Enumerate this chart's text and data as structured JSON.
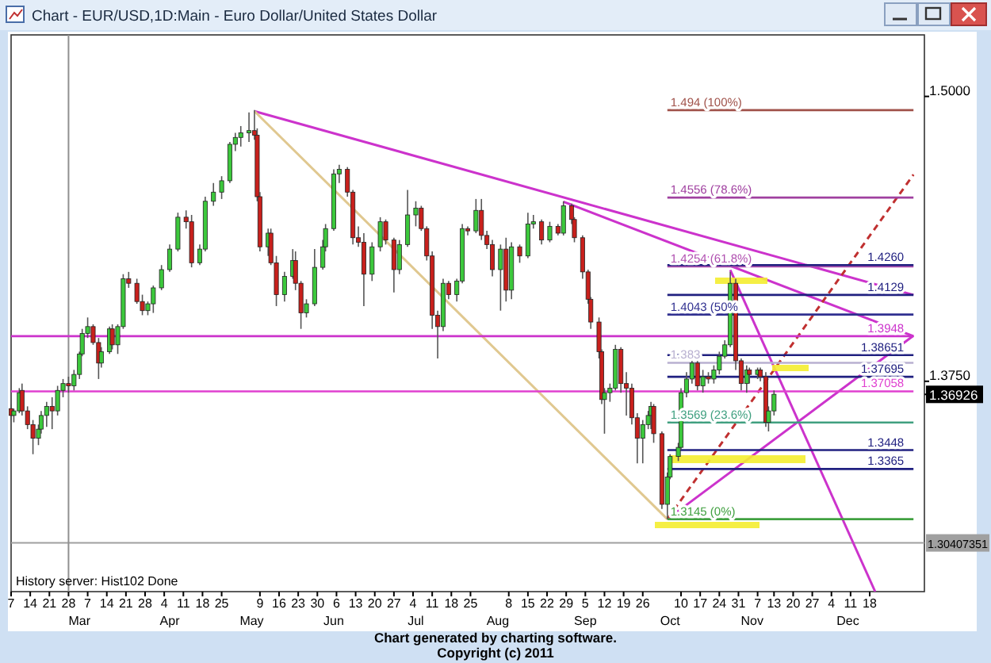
{
  "chart_data": {
    "type": "candlestick",
    "title": "Chart - EUR/USD,1D:Main - Euro Dollar/United States Dollar",
    "xlim": [
      "2011-02-07",
      "2012-01-07"
    ],
    "ylim": [
      1.2827,
      1.527
    ],
    "xticks": [
      {
        "value": "2011-02-07",
        "label": "7"
      },
      {
        "value": "2011-02-14",
        "label": "14"
      },
      {
        "value": "2011-02-21",
        "label": "21"
      },
      {
        "value": "2011-02-28",
        "label": "28"
      },
      {
        "value": "2011-03-07",
        "label": "7"
      },
      {
        "value": "2011-03-14",
        "label": "14"
      },
      {
        "value": "2011-03-21",
        "label": "21"
      },
      {
        "value": "2011-03-28",
        "label": "28"
      },
      {
        "value": "2011-04-04",
        "label": "4"
      },
      {
        "value": "2011-04-11",
        "label": "11"
      },
      {
        "value": "2011-04-18",
        "label": "18"
      },
      {
        "value": "2011-04-25",
        "label": "25"
      },
      {
        "value": "2011-05-09",
        "label": "9"
      },
      {
        "value": "2011-05-16",
        "label": "16"
      },
      {
        "value": "2011-05-23",
        "label": "23"
      },
      {
        "value": "2011-05-30",
        "label": "30"
      },
      {
        "value": "2011-06-06",
        "label": "6"
      },
      {
        "value": "2011-06-13",
        "label": "13"
      },
      {
        "value": "2011-06-20",
        "label": "20"
      },
      {
        "value": "2011-06-27",
        "label": "27"
      },
      {
        "value": "2011-07-04",
        "label": "4"
      },
      {
        "value": "2011-07-11",
        "label": "11"
      },
      {
        "value": "2011-07-18",
        "label": "18"
      },
      {
        "value": "2011-07-25",
        "label": "25"
      },
      {
        "value": "2011-08-08",
        "label": "8"
      },
      {
        "value": "2011-08-15",
        "label": "15"
      },
      {
        "value": "2011-08-22",
        "label": "22"
      },
      {
        "value": "2011-08-29",
        "label": "29"
      },
      {
        "value": "2011-09-05",
        "label": "5"
      },
      {
        "value": "2011-09-12",
        "label": "12"
      },
      {
        "value": "2011-09-19",
        "label": "19"
      },
      {
        "value": "2011-09-26",
        "label": "26"
      },
      {
        "value": "2011-10-10",
        "label": "10"
      },
      {
        "value": "2011-10-17",
        "label": "17"
      },
      {
        "value": "2011-10-24",
        "label": "24"
      },
      {
        "value": "2011-10-31",
        "label": "31"
      },
      {
        "value": "2011-11-07",
        "label": "7"
      },
      {
        "value": "2011-11-13",
        "label": "13"
      },
      {
        "value": "2011-11-20",
        "label": "20"
      },
      {
        "value": "2011-11-27",
        "label": "27"
      },
      {
        "value": "2011-12-04",
        "label": "4"
      },
      {
        "value": "2011-12-11",
        "label": "11"
      },
      {
        "value": "2011-12-18",
        "label": "18"
      }
    ],
    "x2lim": [
      "2011-02-07",
      "2012-01-07"
    ],
    "x2ticks": [
      {
        "value": "2011-03-04",
        "label": "Mar"
      },
      {
        "value": "2011-04-06",
        "label": "Apr"
      },
      {
        "value": "2011-05-06",
        "label": "May"
      },
      {
        "value": "2011-06-05",
        "label": "Jun"
      },
      {
        "value": "2011-07-05",
        "label": "Jul"
      },
      {
        "value": "2011-08-04",
        "label": "Aug"
      },
      {
        "value": "2011-09-05",
        "label": "Sep"
      },
      {
        "value": "2011-10-06",
        "label": "Oct"
      },
      {
        "value": "2011-11-05",
        "label": "Nov"
      },
      {
        "value": "2011-12-10",
        "label": "Dec"
      }
    ],
    "yticks": [
      {
        "value": 1.5,
        "label": "1.5000"
      },
      {
        "value": 1.375,
        "label": "1.3750"
      },
      {
        "value": 1.36926,
        "label": "1.36926"
      }
    ],
    "x": [
      "2011-02-07",
      "2011-02-08",
      "2011-02-10",
      "2011-02-11",
      "2011-02-13",
      "2011-02-15",
      "2011-02-17",
      "2011-02-18",
      "2011-02-20",
      "2011-02-22",
      "2011-02-24",
      "2011-02-26",
      "2011-02-28",
      "2011-03-02",
      "2011-03-04",
      "2011-03-05",
      "2011-03-07",
      "2011-03-09",
      "2011-03-11",
      "2011-03-12",
      "2011-03-15",
      "2011-03-16",
      "2011-03-18",
      "2011-03-20",
      "2011-03-22",
      "2011-03-25",
      "2011-03-27",
      "2011-03-29",
      "2011-03-31",
      "2011-04-03",
      "2011-04-06",
      "2011-04-09",
      "2011-04-12",
      "2011-04-14",
      "2011-04-17",
      "2011-04-19",
      "2011-04-22",
      "2011-04-25",
      "2011-04-28",
      "2011-04-30",
      "2011-05-02",
      "2011-05-05",
      "2011-05-07",
      "2011-05-08",
      "2011-05-09",
      "2011-05-12",
      "2011-05-13",
      "2011-05-15",
      "2011-05-18",
      "2011-05-21",
      "2011-05-22",
      "2011-05-24",
      "2011-05-26",
      "2011-05-29",
      "2011-06-01",
      "2011-06-02",
      "2011-06-05",
      "2011-06-07",
      "2011-06-10",
      "2011-06-12",
      "2011-06-14",
      "2011-06-16",
      "2011-06-19",
      "2011-06-22",
      "2011-06-24",
      "2011-06-27",
      "2011-06-29",
      "2011-07-02",
      "2011-07-05",
      "2011-07-07",
      "2011-07-09",
      "2011-07-11",
      "2011-07-13",
      "2011-07-15",
      "2011-07-17",
      "2011-07-20",
      "2011-07-22",
      "2011-07-24",
      "2011-07-27",
      "2011-07-29",
      "2011-07-31",
      "2011-08-02",
      "2011-08-05",
      "2011-08-07",
      "2011-08-09",
      "2011-08-12",
      "2011-08-15",
      "2011-08-17",
      "2011-08-20",
      "2011-08-23",
      "2011-08-26",
      "2011-08-28",
      "2011-08-31",
      "2011-09-01",
      "2011-09-04",
      "2011-09-06",
      "2011-09-07",
      "2011-09-10",
      "2011-09-11",
      "2011-09-12",
      "2011-09-14",
      "2011-09-16",
      "2011-09-18",
      "2011-09-20",
      "2011-09-22",
      "2011-09-24",
      "2011-09-26",
      "2011-09-28",
      "2011-09-29",
      "2011-09-30",
      "2011-10-03",
      "2011-10-05",
      "2011-10-06",
      "2011-10-09",
      "2011-10-10",
      "2011-10-12",
      "2011-10-14",
      "2011-10-16",
      "2011-10-18",
      "2011-10-20",
      "2011-10-22",
      "2011-10-24",
      "2011-10-26",
      "2011-10-28",
      "2011-10-30",
      "2011-11-01",
      "2011-11-03",
      "2011-11-04",
      "2011-11-07",
      "2011-11-08",
      "2011-11-10",
      "2011-11-11",
      "2011-11-13"
    ],
    "ohlc": [
      [
        1.363,
        1.365,
        1.358,
        1.36
      ],
      [
        1.36,
        1.363,
        1.357,
        1.362
      ],
      [
        1.362,
        1.372,
        1.361,
        1.37
      ],
      [
        1.371,
        1.374,
        1.36,
        1.362
      ],
      [
        1.362,
        1.364,
        1.354,
        1.356
      ],
      [
        1.356,
        1.358,
        1.343,
        1.35
      ],
      [
        1.35,
        1.356,
        1.347,
        1.354
      ],
      [
        1.354,
        1.362,
        1.352,
        1.36
      ],
      [
        1.36,
        1.366,
        1.355,
        1.364
      ],
      [
        1.364,
        1.368,
        1.354,
        1.362
      ],
      [
        1.362,
        1.373,
        1.36,
        1.371
      ],
      [
        1.371,
        1.376,
        1.368,
        1.374
      ],
      [
        1.374,
        1.377,
        1.37,
        1.373
      ],
      [
        1.373,
        1.38,
        1.371,
        1.378
      ],
      [
        1.378,
        1.388,
        1.376,
        1.387
      ],
      [
        1.387,
        1.398,
        1.386,
        1.396
      ],
      [
        1.396,
        1.403,
        1.394,
        1.399
      ],
      [
        1.399,
        1.4,
        1.391,
        1.392
      ],
      [
        1.392,
        1.394,
        1.376,
        1.383
      ],
      [
        1.383,
        1.39,
        1.381,
        1.388
      ],
      [
        1.388,
        1.399,
        1.387,
        1.398
      ],
      [
        1.398,
        1.4,
        1.389,
        1.391
      ],
      [
        1.391,
        1.4,
        1.387,
        1.399
      ],
      [
        1.399,
        1.422,
        1.398,
        1.42
      ],
      [
        1.42,
        1.423,
        1.416,
        1.418
      ],
      [
        1.418,
        1.42,
        1.409,
        1.41
      ],
      [
        1.41,
        1.413,
        1.404,
        1.406
      ],
      [
        1.406,
        1.41,
        1.404,
        1.409
      ],
      [
        1.409,
        1.417,
        1.405,
        1.416
      ],
      [
        1.416,
        1.426,
        1.415,
        1.424
      ],
      [
        1.424,
        1.435,
        1.423,
        1.433
      ],
      [
        1.433,
        1.449,
        1.432,
        1.447
      ],
      [
        1.447,
        1.45,
        1.442,
        1.445
      ],
      [
        1.445,
        1.448,
        1.425,
        1.427
      ],
      [
        1.427,
        1.435,
        1.426,
        1.433
      ],
      [
        1.433,
        1.456,
        1.432,
        1.454
      ],
      [
        1.454,
        1.462,
        1.452,
        1.458
      ],
      [
        1.458,
        1.465,
        1.455,
        1.463
      ],
      [
        1.463,
        1.48,
        1.462,
        1.479
      ],
      [
        1.479,
        1.484,
        1.476,
        1.482
      ],
      [
        1.482,
        1.487,
        1.478,
        1.484
      ],
      [
        1.484,
        1.493,
        1.48,
        1.485
      ],
      [
        1.485,
        1.494,
        1.481,
        1.483
      ],
      [
        1.483,
        1.486,
        1.454,
        1.456
      ],
      [
        1.456,
        1.458,
        1.432,
        1.434
      ],
      [
        1.434,
        1.442,
        1.43,
        1.44
      ],
      [
        1.44,
        1.442,
        1.426,
        1.427
      ],
      [
        1.427,
        1.43,
        1.408,
        1.413
      ],
      [
        1.413,
        1.423,
        1.41,
        1.421
      ],
      [
        1.421,
        1.433,
        1.42,
        1.428
      ],
      [
        1.428,
        1.432,
        1.415,
        1.418
      ],
      [
        1.418,
        1.419,
        1.398,
        1.405
      ],
      [
        1.405,
        1.411,
        1.403,
        1.409
      ],
      [
        1.409,
        1.433,
        1.408,
        1.425
      ],
      [
        1.425,
        1.437,
        1.424,
        1.434
      ],
      [
        1.434,
        1.444,
        1.432,
        1.442
      ],
      [
        1.442,
        1.468,
        1.441,
        1.466
      ],
      [
        1.466,
        1.47,
        1.462,
        1.468
      ],
      [
        1.468,
        1.469,
        1.456,
        1.458
      ],
      [
        1.458,
        1.459,
        1.435,
        1.438
      ],
      [
        1.438,
        1.443,
        1.434,
        1.436
      ],
      [
        1.436,
        1.44,
        1.408,
        1.422
      ],
      [
        1.422,
        1.436,
        1.419,
        1.434
      ],
      [
        1.434,
        1.447,
        1.432,
        1.445
      ],
      [
        1.445,
        1.446,
        1.435,
        1.437
      ],
      [
        1.437,
        1.438,
        1.414,
        1.424
      ],
      [
        1.424,
        1.437,
        1.422,
        1.435
      ],
      [
        1.435,
        1.459,
        1.434,
        1.448
      ],
      [
        1.448,
        1.454,
        1.443,
        1.451
      ],
      [
        1.451,
        1.452,
        1.441,
        1.442
      ],
      [
        1.442,
        1.443,
        1.428,
        1.43
      ],
      [
        1.43,
        1.432,
        1.398,
        1.404
      ],
      [
        1.404,
        1.406,
        1.385,
        1.399
      ],
      [
        1.399,
        1.42,
        1.397,
        1.418
      ],
      [
        1.418,
        1.419,
        1.411,
        1.413
      ],
      [
        1.413,
        1.42,
        1.41,
        1.419
      ],
      [
        1.419,
        1.444,
        1.418,
        1.442
      ],
      [
        1.442,
        1.443,
        1.439,
        1.441
      ],
      [
        1.441,
        1.455,
        1.44,
        1.45
      ],
      [
        1.45,
        1.455,
        1.437,
        1.439
      ],
      [
        1.439,
        1.441,
        1.433,
        1.435
      ],
      [
        1.435,
        1.437,
        1.421,
        1.424
      ],
      [
        1.424,
        1.435,
        1.406,
        1.433
      ],
      [
        1.433,
        1.438,
        1.41,
        1.415
      ],
      [
        1.415,
        1.436,
        1.411,
        1.434
      ],
      [
        1.434,
        1.435,
        1.427,
        1.43
      ],
      [
        1.43,
        1.449,
        1.429,
        1.444
      ],
      [
        1.444,
        1.448,
        1.442,
        1.445
      ],
      [
        1.445,
        1.446,
        1.435,
        1.437
      ],
      [
        1.437,
        1.445,
        1.436,
        1.443
      ],
      [
        1.443,
        1.444,
        1.439,
        1.44
      ],
      [
        1.44,
        1.454,
        1.439,
        1.452
      ],
      [
        1.452,
        1.453,
        1.444,
        1.446
      ],
      [
        1.446,
        1.447,
        1.436,
        1.438
      ],
      [
        1.438,
        1.439,
        1.42,
        1.423
      ],
      [
        1.423,
        1.424,
        1.409,
        1.411
      ],
      [
        1.411,
        1.412,
        1.398,
        1.401
      ],
      [
        1.401,
        1.403,
        1.385,
        1.388
      ],
      [
        1.388,
        1.389,
        1.365,
        1.367
      ],
      [
        1.367,
        1.372,
        1.352,
        1.37
      ],
      [
        1.37,
        1.374,
        1.366,
        1.372
      ],
      [
        1.372,
        1.391,
        1.371,
        1.389
      ],
      [
        1.389,
        1.39,
        1.37,
        1.374
      ],
      [
        1.374,
        1.379,
        1.36,
        1.372
      ],
      [
        1.372,
        1.374,
        1.356,
        1.359
      ],
      [
        1.359,
        1.361,
        1.339,
        1.35
      ],
      [
        1.35,
        1.358,
        1.339,
        1.356
      ],
      [
        1.356,
        1.362,
        1.354,
        1.36
      ],
      [
        1.36,
        1.366,
        1.354,
        1.364
      ],
      [
        1.364,
        1.365,
        1.348,
        1.352
      ],
      [
        1.352,
        1.353,
        1.319,
        1.321
      ],
      [
        1.321,
        1.335,
        1.3145,
        1.333
      ],
      [
        1.333,
        1.343,
        1.332,
        1.342
      ],
      [
        1.342,
        1.348,
        1.34,
        1.346
      ],
      [
        1.346,
        1.372,
        1.345,
        1.37
      ],
      [
        1.37,
        1.379,
        1.368,
        1.376
      ],
      [
        1.376,
        1.385,
        1.374,
        1.383
      ],
      [
        1.383,
        1.384,
        1.371,
        1.373
      ],
      [
        1.373,
        1.38,
        1.37,
        1.377
      ],
      [
        1.377,
        1.379,
        1.374,
        1.376
      ],
      [
        1.376,
        1.382,
        1.374,
        1.38
      ],
      [
        1.38,
        1.388,
        1.378,
        1.386
      ],
      [
        1.386,
        1.393,
        1.385,
        1.391
      ],
      [
        1.391,
        1.423,
        1.39,
        1.418
      ],
      [
        1.418,
        1.42,
        1.38,
        1.384
      ],
      [
        1.384,
        1.385,
        1.371,
        1.374
      ],
      [
        1.374,
        1.382,
        1.37,
        1.38
      ],
      [
        1.38,
        1.381,
        1.374,
        1.378
      ],
      [
        1.378,
        1.381,
        1.376,
        1.38
      ],
      [
        1.38,
        1.381,
        1.375,
        1.377
      ],
      [
        1.377,
        1.379,
        1.355,
        1.357
      ],
      [
        1.357,
        1.364,
        1.353,
        1.362
      ],
      [
        1.362,
        1.371,
        1.36,
        1.3693
      ]
    ],
    "series": [
      {
        "type": "line",
        "color": "#cc33cc",
        "x": [
          "2011-05-07",
          "2012-01-03"
        ],
        "values": [
          1.4935,
          1.4129
        ]
      },
      {
        "type": "line",
        "color": "#cc33cc",
        "x": [
          "2011-08-28",
          "2012-01-03"
        ],
        "values": [
          1.4538,
          1.3948
        ]
      },
      {
        "type": "line",
        "color": "#cc33cc",
        "x": [
          "2011-10-28",
          "2011-12-20"
        ],
        "values": [
          1.4239,
          1.2827
        ]
      },
      {
        "type": "line",
        "color": "#cc33cc",
        "x": [
          "2011-10-05",
          "2012-01-03"
        ],
        "values": [
          1.3145,
          1.395
        ]
      },
      {
        "type": "line",
        "color": "#e0c890",
        "x": [
          "2011-05-07",
          "2011-10-05"
        ],
        "values": [
          1.4935,
          1.3145
        ]
      },
      {
        "type": "line",
        "color": "#c03030",
        "line_style": "dashed",
        "x": [
          "2011-10-05",
          "2012-01-03"
        ],
        "values": [
          1.3145,
          1.4657
        ]
      },
      {
        "type": "line",
        "name": "1.3948",
        "color": "#cc33cc",
        "x": [
          "2012-01-03",
          "2011-02-07"
        ],
        "values": [
          1.3948,
          1.3948
        ]
      },
      {
        "type": "line",
        "name": "1.37058",
        "color": "#e040d0",
        "x": [
          "2012-01-03",
          "2011-02-07"
        ],
        "values": [
          1.37058,
          1.37058
        ]
      },
      {
        "type": "line",
        "name": "1.494 (100%)",
        "color": "#a0524a",
        "x": [
          "2011-10-05",
          "2012-01-03"
        ],
        "values": [
          1.494,
          1.494
        ]
      },
      {
        "type": "line",
        "name": "1.4556 (78.6%)",
        "color": "#a040a0",
        "x": [
          "2011-10-05",
          "2012-01-03"
        ],
        "values": [
          1.4556,
          1.4556
        ]
      },
      {
        "type": "line",
        "name": "1.4254 (61.8%)",
        "color": "#b050b0",
        "x": [
          "2011-10-05",
          "2012-01-03"
        ],
        "values": [
          1.4254,
          1.4254
        ]
      },
      {
        "type": "line",
        "name": "1.4043 (50%",
        "color": "#303090",
        "x": [
          "2011-10-05",
          "2012-01-03"
        ],
        "values": [
          1.4043,
          1.4043
        ]
      },
      {
        "type": "line",
        "name": "1.383",
        "color": "#b8b0d0",
        "x": [
          "2011-10-05",
          "2012-01-03"
        ],
        "values": [
          1.3831,
          1.3831
        ]
      },
      {
        "type": "line",
        "name": "1.3569 (23.6%)",
        "color": "#40a080",
        "x": [
          "2011-10-05",
          "2012-01-03"
        ],
        "values": [
          1.3569,
          1.3569
        ]
      },
      {
        "type": "line",
        "name": "1.3145 (0%)",
        "color": "#40a040",
        "x": [
          "2011-10-05",
          "2012-01-03"
        ],
        "values": [
          1.3145,
          1.3145
        ]
      },
      {
        "type": "line",
        "name": "1.4260",
        "color": "#202080",
        "x": [
          "2012-01-03",
          "2011-10-05"
        ],
        "values": [
          1.426,
          1.426
        ]
      },
      {
        "type": "line",
        "name": "1.4129",
        "color": "#202080",
        "x": [
          "2012-01-03",
          "2011-10-05"
        ],
        "values": [
          1.4129,
          1.4129
        ]
      },
      {
        "type": "line",
        "name": "1.38651",
        "color": "#202080",
        "x": [
          "2012-01-03",
          "2011-10-05"
        ],
        "values": [
          1.38651,
          1.38651
        ]
      },
      {
        "type": "line",
        "name": "1.37695",
        "color": "#202080",
        "x": [
          "2012-01-03",
          "2011-10-05"
        ],
        "values": [
          1.37695,
          1.37695
        ]
      },
      {
        "type": "line",
        "name": "1.3448",
        "color": "#202080",
        "x": [
          "2012-01-03",
          "2011-10-05"
        ],
        "values": [
          1.3448,
          1.3448
        ]
      },
      {
        "type": "line",
        "name": "1.3365",
        "color": "#202080",
        "x": [
          "2012-01-03",
          "2011-10-05"
        ],
        "values": [
          1.3365,
          1.3365
        ]
      }
    ],
    "ref_lines": [
      {
        "axis": "y",
        "value": 1.30407351,
        "label": "1.30407351",
        "color": "#a0a0a0"
      },
      {
        "axis": "x",
        "value": "2011-02-28",
        "color": "#909090"
      }
    ],
    "annotations": [
      "History server: Hist102 Done",
      "Chart generated by charting software.",
      "Copyright (c) 2011"
    ]
  }
}
